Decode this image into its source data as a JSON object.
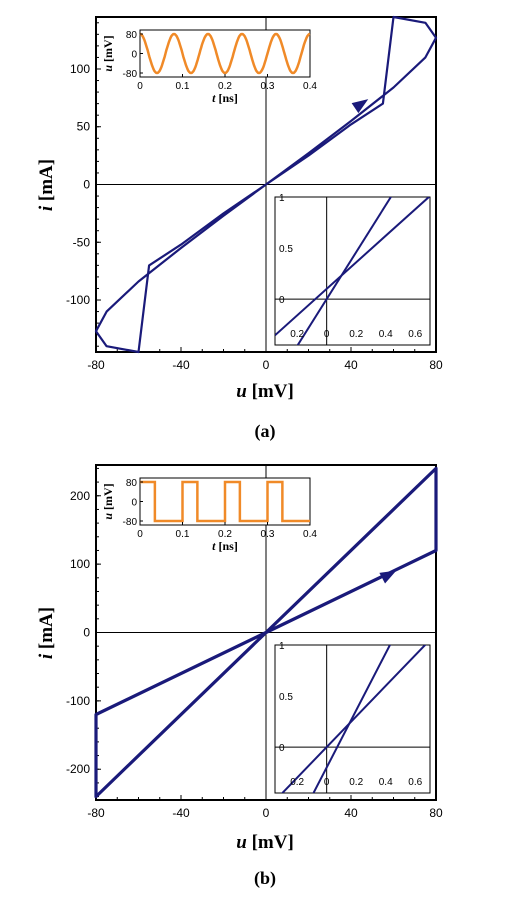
{
  "colors": {
    "curve": "#1a1a7a",
    "inset_wave": "#f08a28",
    "axis": "#000000"
  },
  "chart_data": [
    {
      "type": "line",
      "caption": "(a)",
      "xlabel": "u [mV]",
      "ylabel": "i [mA]",
      "xlim": [
        -80,
        80
      ],
      "ylim": [
        -145,
        145
      ],
      "xticks": [
        -80,
        -40,
        0,
        40,
        80
      ],
      "yticks": [
        -100,
        -50,
        0,
        50,
        100
      ],
      "series": [
        {
          "values_xy": [
            [
              0,
              0
            ],
            [
              20,
              25
            ],
            [
              40,
              52
            ],
            [
              55,
              70
            ],
            [
              60,
              145
            ],
            [
              75,
              140
            ],
            [
              80,
              127
            ],
            [
              75,
              110
            ],
            [
              60,
              84
            ],
            [
              40,
              55
            ],
            [
              20,
              27
            ],
            [
              0,
              0
            ],
            [
              -20,
              -25
            ],
            [
              -40,
              -52
            ],
            [
              -55,
              -70
            ],
            [
              -60,
              -145
            ],
            [
              -75,
              -140
            ],
            [
              -80,
              -127
            ],
            [
              -75,
              -110
            ],
            [
              -60,
              -84
            ],
            [
              -40,
              -55
            ],
            [
              -20,
              -27
            ],
            [
              0,
              0
            ]
          ]
        }
      ],
      "direction_arrow_at": [
        45,
        70
      ],
      "inset_waveform": {
        "type": "sine",
        "xlabel": "t [ns]",
        "ylabel": "u [mV]",
        "xticks": [
          0,
          0.1,
          0.2,
          0.3,
          0.4
        ],
        "yticks": [
          80,
          0,
          -80
        ],
        "period": 0.08,
        "amplitude": 80
      },
      "inset_zoom": {
        "xticks": [
          "0.2",
          "0",
          "0.2",
          "0.4",
          "0.6"
        ],
        "yticks": [
          "1",
          "0.5",
          "0"
        ],
        "xlim": [
          -0.35,
          0.7
        ],
        "ylim": [
          -0.45,
          1.0
        ],
        "lines": [
          {
            "slope": 2.3,
            "intercept": 0.0
          },
          {
            "slope": 1.3,
            "intercept": 0.1
          }
        ]
      }
    },
    {
      "type": "line",
      "caption": "(b)",
      "xlabel": "u [mV]",
      "ylabel": "i [mA]",
      "xlim": [
        -80,
        80
      ],
      "ylim": [
        -245,
        245
      ],
      "xticks": [
        -80,
        -40,
        0,
        40,
        80
      ],
      "yticks": [
        -200,
        -100,
        0,
        100,
        200
      ],
      "series": [
        {
          "values_xy": [
            [
              0,
              0
            ],
            [
              80,
              120
            ],
            [
              80,
              240
            ],
            [
              0,
              0
            ],
            [
              -80,
              -120
            ],
            [
              -80,
              -240
            ],
            [
              0,
              0
            ]
          ]
        }
      ],
      "direction_arrow_at": [
        58,
        85
      ],
      "inset_waveform": {
        "type": "square",
        "xlabel": "t [ns]",
        "ylabel": "u [mV]",
        "xticks": [
          0,
          0.1,
          0.2,
          0.3,
          0.4
        ],
        "yticks": [
          80,
          0,
          -80
        ],
        "period": 0.1,
        "amplitude": 80
      },
      "inset_zoom": {
        "xticks": [
          "0.2",
          "0",
          "0.2",
          "0.4",
          "0.6"
        ],
        "yticks": [
          "1",
          "0.5",
          "0"
        ],
        "xlim": [
          -0.35,
          0.7
        ],
        "ylim": [
          -0.45,
          1.0
        ],
        "lines": [
          {
            "slope": 2.8,
            "intercept": -0.2
          },
          {
            "slope": 1.5,
            "intercept": 0.0
          }
        ]
      }
    }
  ]
}
